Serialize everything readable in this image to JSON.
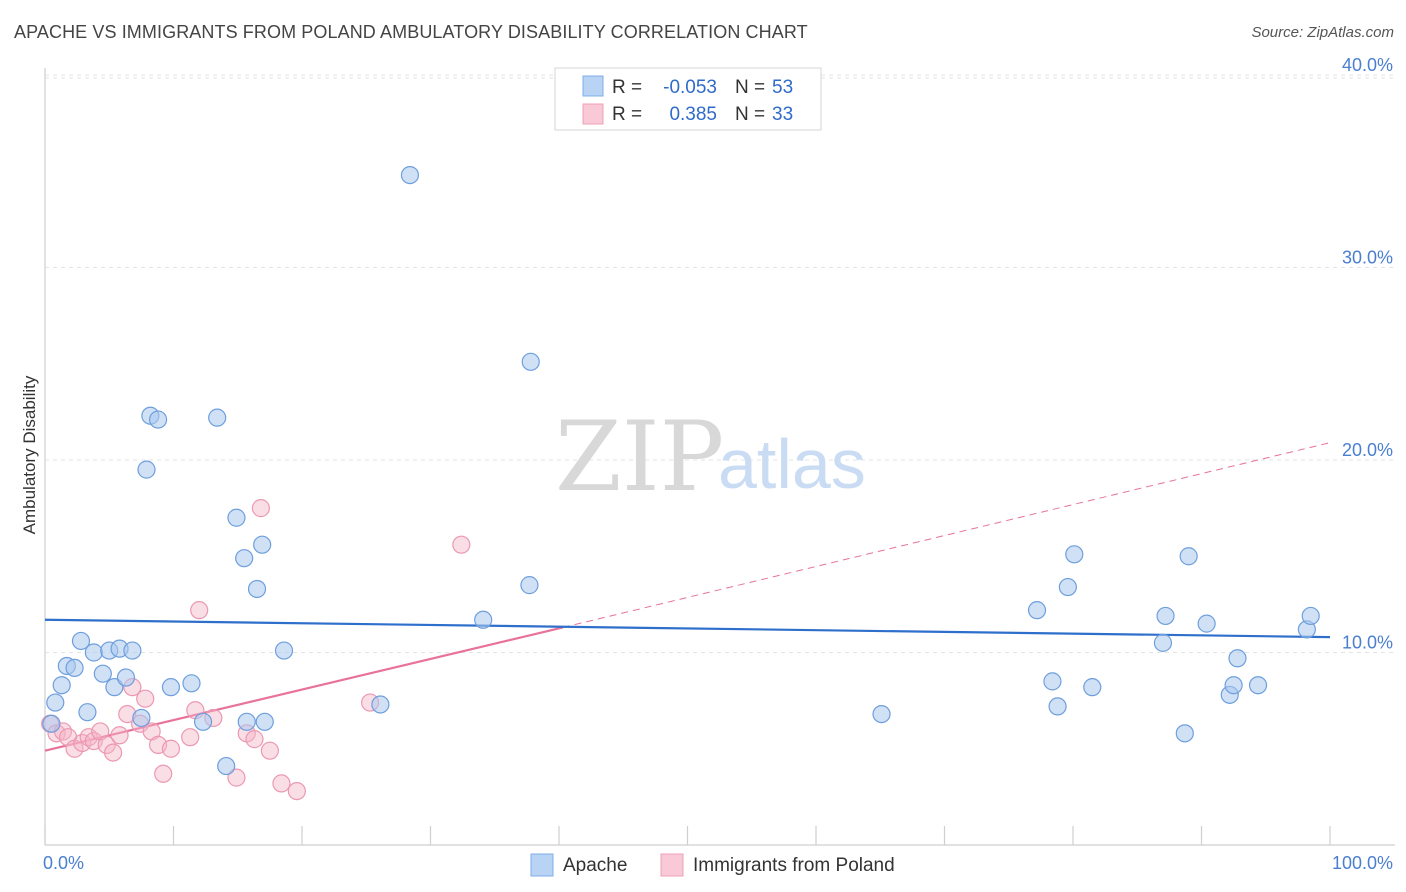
{
  "title": "APACHE VS IMMIGRANTS FROM POLAND AMBULATORY DISABILITY CORRELATION CHART",
  "source": "Source: ZipAtlas.com",
  "watermark": {
    "zip": "ZIP",
    "atlas": "atlas"
  },
  "legend": {
    "rows": [
      {
        "r_label": "R =",
        "r_value": "-0.053",
        "n_label": "N =",
        "n_value": "53"
      },
      {
        "r_label": "R =",
        "r_value": "0.385",
        "n_label": "N =",
        "n_value": "33"
      }
    ]
  },
  "chart_data": {
    "type": "scatter",
    "xlabel": "",
    "ylabel": "Ambulatory Disability",
    "xlim": [
      0,
      100
    ],
    "ylim": [
      0,
      40
    ],
    "x_tick_labels": [
      "0.0%",
      "100.0%"
    ],
    "y_ticks": [
      10,
      20,
      30,
      40
    ],
    "y_tick_labels": [
      "10.0%",
      "20.0%",
      "30.0%",
      "40.0%"
    ],
    "grid": true,
    "legend_placement": "top-center",
    "colors": {
      "apache": "#a9c8ef",
      "apache_line": "#2f6fcc",
      "poland": "#f5b6c8",
      "poland_line": "#e8729a"
    },
    "series": [
      {
        "name": "Apache",
        "trend": {
          "x": [
            0,
            100
          ],
          "y": [
            11.7,
            10.8
          ],
          "style": "solid"
        },
        "points": [
          [
            0.5,
            6.3
          ],
          [
            0.8,
            7.4
          ],
          [
            1.3,
            8.3
          ],
          [
            1.7,
            9.3
          ],
          [
            2.3,
            9.2
          ],
          [
            2.8,
            10.6
          ],
          [
            3.3,
            6.9
          ],
          [
            3.8,
            10.0
          ],
          [
            4.5,
            8.9
          ],
          [
            5.0,
            10.1
          ],
          [
            5.4,
            8.2
          ],
          [
            5.8,
            10.2
          ],
          [
            6.3,
            8.7
          ],
          [
            6.8,
            10.1
          ],
          [
            7.5,
            6.6
          ],
          [
            7.9,
            19.5
          ],
          [
            8.2,
            22.3
          ],
          [
            8.8,
            22.1
          ],
          [
            9.8,
            8.2
          ],
          [
            11.4,
            8.4
          ],
          [
            12.3,
            6.4
          ],
          [
            13.4,
            22.2
          ],
          [
            14.1,
            4.1
          ],
          [
            14.9,
            17.0
          ],
          [
            15.5,
            14.9
          ],
          [
            15.7,
            6.4
          ],
          [
            16.5,
            13.3
          ],
          [
            16.9,
            15.6
          ],
          [
            17.1,
            6.4
          ],
          [
            18.6,
            10.1
          ],
          [
            26.1,
            7.3
          ],
          [
            28.4,
            34.8
          ],
          [
            34.1,
            11.7
          ],
          [
            37.7,
            13.5
          ],
          [
            37.8,
            25.1
          ],
          [
            65.1,
            6.8
          ],
          [
            77.2,
            12.2
          ],
          [
            78.4,
            8.5
          ],
          [
            78.8,
            7.2
          ],
          [
            79.6,
            13.4
          ],
          [
            80.1,
            15.1
          ],
          [
            81.5,
            8.2
          ],
          [
            87.0,
            10.5
          ],
          [
            87.2,
            11.9
          ],
          [
            88.7,
            5.8
          ],
          [
            89.0,
            15.0
          ],
          [
            90.4,
            11.5
          ],
          [
            92.2,
            7.8
          ],
          [
            92.5,
            8.3
          ],
          [
            92.8,
            9.7
          ],
          [
            94.4,
            8.3
          ],
          [
            98.2,
            11.2
          ],
          [
            98.5,
            11.9
          ]
        ]
      },
      {
        "name": "Immigrants from Poland",
        "trend_solid": {
          "x": [
            0,
            40.3
          ],
          "y": [
            4.9,
            11.3
          ]
        },
        "trend_dashed": {
          "x": [
            40.3,
            100
          ],
          "y": [
            11.3,
            20.9
          ]
        },
        "points": [
          [
            0.4,
            6.3
          ],
          [
            0.9,
            5.8
          ],
          [
            1.4,
            5.9
          ],
          [
            1.8,
            5.6
          ],
          [
            2.3,
            5.0
          ],
          [
            2.9,
            5.3
          ],
          [
            3.4,
            5.6
          ],
          [
            3.8,
            5.4
          ],
          [
            4.3,
            5.9
          ],
          [
            4.8,
            5.2
          ],
          [
            5.3,
            4.8
          ],
          [
            5.8,
            5.7
          ],
          [
            6.4,
            6.8
          ],
          [
            6.8,
            8.2
          ],
          [
            7.4,
            6.3
          ],
          [
            7.8,
            7.6
          ],
          [
            8.3,
            5.9
          ],
          [
            8.8,
            5.2
          ],
          [
            9.2,
            3.7
          ],
          [
            9.8,
            5.0
          ],
          [
            11.3,
            5.6
          ],
          [
            11.7,
            7.0
          ],
          [
            12.0,
            12.2
          ],
          [
            13.1,
            6.6
          ],
          [
            14.9,
            3.5
          ],
          [
            15.7,
            5.8
          ],
          [
            16.3,
            5.5
          ],
          [
            16.8,
            17.5
          ],
          [
            17.5,
            4.9
          ],
          [
            18.4,
            3.2
          ],
          [
            19.6,
            2.8
          ],
          [
            25.3,
            7.4
          ],
          [
            32.4,
            15.6
          ]
        ]
      }
    ]
  }
}
